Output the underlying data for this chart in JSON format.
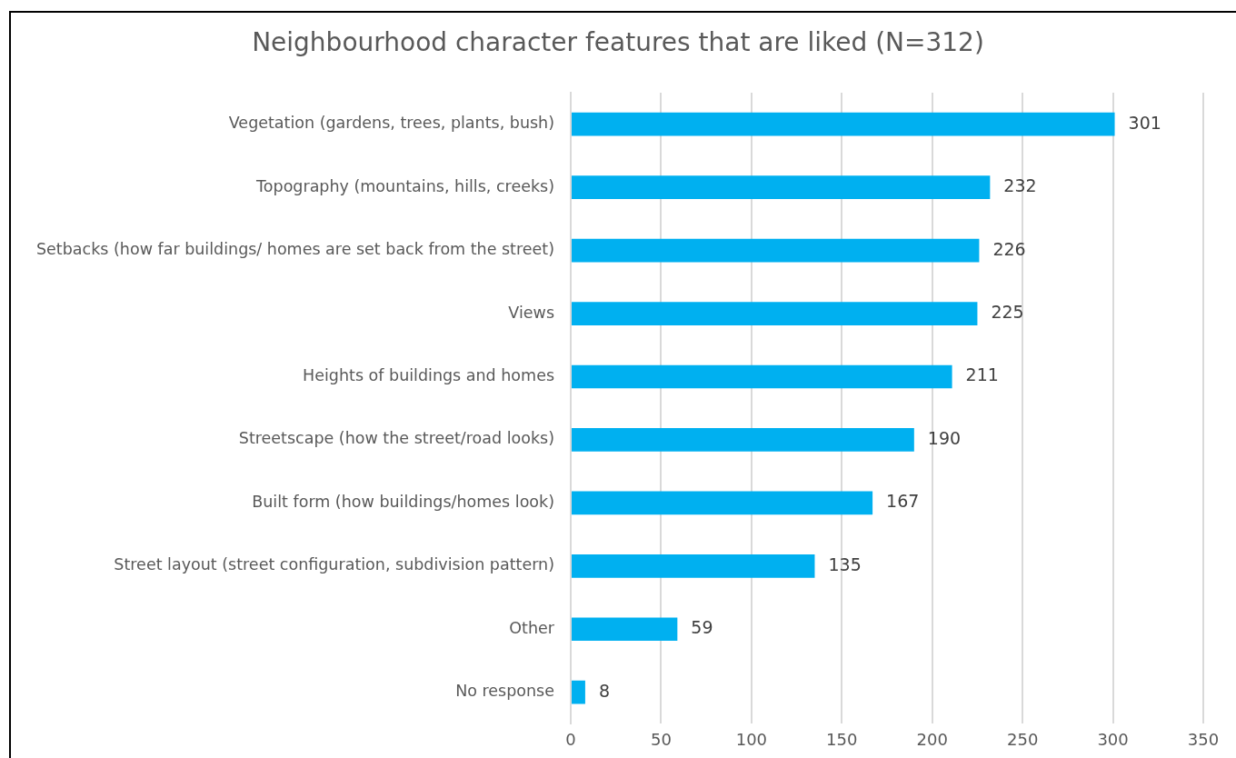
{
  "chart_data": {
    "type": "bar",
    "orientation": "horizontal",
    "title": "Neighbourhood character features that are liked (N=312)",
    "categories": [
      "Vegetation (gardens, trees, plants, bush)",
      "Topography (mountains, hills, creeks)",
      "Setbacks (how far buildings/ homes are set back from the street)",
      "Views",
      "Heights of buildings and homes",
      "Streetscape (how the street/road looks)",
      "Built form (how buildings/homes look)",
      "Street layout (street configuration, subdivision pattern)",
      "Other",
      "No response"
    ],
    "values": [
      301,
      232,
      226,
      225,
      211,
      190,
      167,
      135,
      59,
      8
    ],
    "color": "#00b0f0",
    "xlim": [
      0,
      350
    ],
    "xticks": [
      0,
      50,
      100,
      150,
      200,
      250,
      300,
      350
    ],
    "grid": "x",
    "data_labels": true,
    "legend": false
  }
}
